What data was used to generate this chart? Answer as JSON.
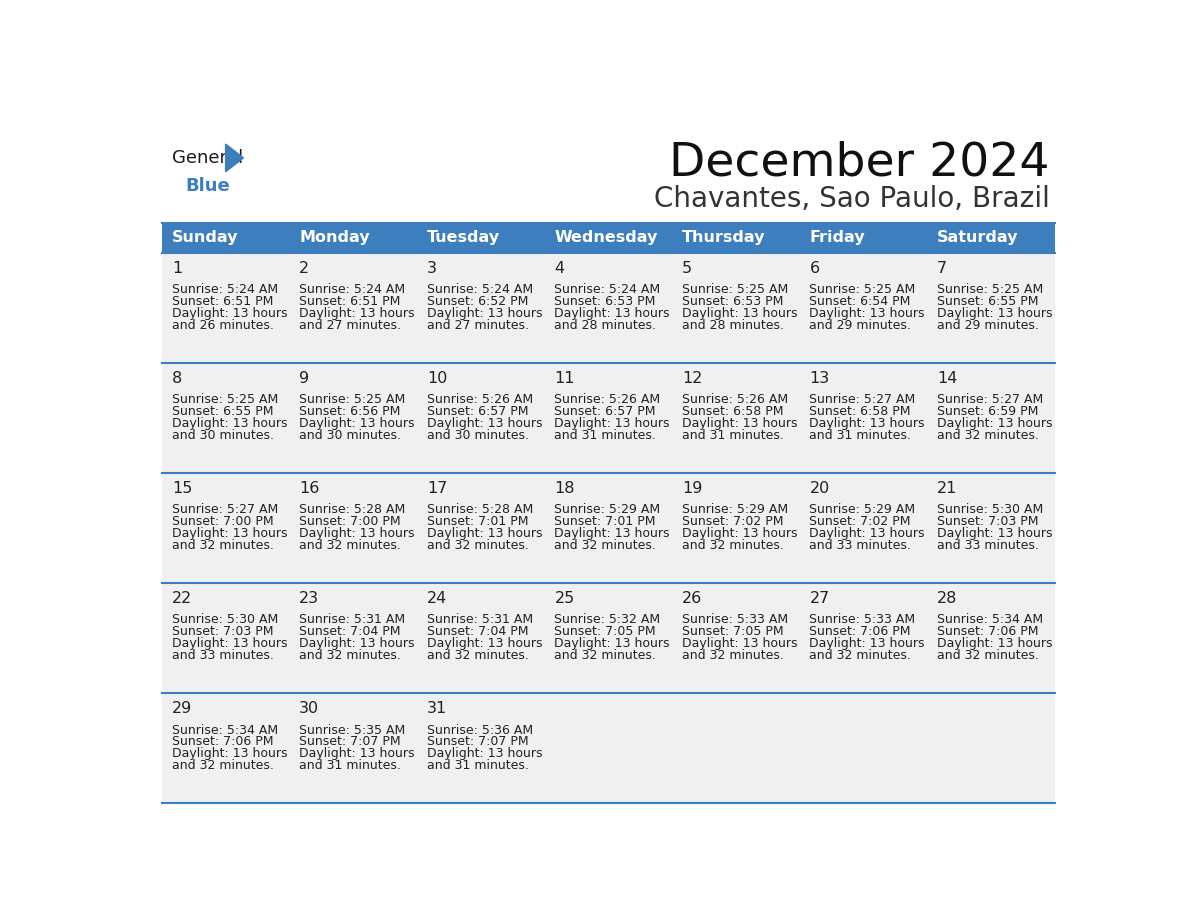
{
  "title": "December 2024",
  "subtitle": "Chavantes, Sao Paulo, Brazil",
  "header_bg_color": "#3d7ebf",
  "header_text_color": "#ffffff",
  "cell_bg_color": "#f0f0f0",
  "row_separator_color": "#3d7ebf",
  "text_color": "#222222",
  "days_of_week": [
    "Sunday",
    "Monday",
    "Tuesday",
    "Wednesday",
    "Thursday",
    "Friday",
    "Saturday"
  ],
  "calendar_data": [
    [
      {
        "day": "1",
        "sunrise": "5:24 AM",
        "sunset": "6:51 PM",
        "daylight_h": "13 hours",
        "daylight_m": "and 26 minutes."
      },
      {
        "day": "2",
        "sunrise": "5:24 AM",
        "sunset": "6:51 PM",
        "daylight_h": "13 hours",
        "daylight_m": "and 27 minutes."
      },
      {
        "day": "3",
        "sunrise": "5:24 AM",
        "sunset": "6:52 PM",
        "daylight_h": "13 hours",
        "daylight_m": "and 27 minutes."
      },
      {
        "day": "4",
        "sunrise": "5:24 AM",
        "sunset": "6:53 PM",
        "daylight_h": "13 hours",
        "daylight_m": "and 28 minutes."
      },
      {
        "day": "5",
        "sunrise": "5:25 AM",
        "sunset": "6:53 PM",
        "daylight_h": "13 hours",
        "daylight_m": "and 28 minutes."
      },
      {
        "day": "6",
        "sunrise": "5:25 AM",
        "sunset": "6:54 PM",
        "daylight_h": "13 hours",
        "daylight_m": "and 29 minutes."
      },
      {
        "day": "7",
        "sunrise": "5:25 AM",
        "sunset": "6:55 PM",
        "daylight_h": "13 hours",
        "daylight_m": "and 29 minutes."
      }
    ],
    [
      {
        "day": "8",
        "sunrise": "5:25 AM",
        "sunset": "6:55 PM",
        "daylight_h": "13 hours",
        "daylight_m": "and 30 minutes."
      },
      {
        "day": "9",
        "sunrise": "5:25 AM",
        "sunset": "6:56 PM",
        "daylight_h": "13 hours",
        "daylight_m": "and 30 minutes."
      },
      {
        "day": "10",
        "sunrise": "5:26 AM",
        "sunset": "6:57 PM",
        "daylight_h": "13 hours",
        "daylight_m": "and 30 minutes."
      },
      {
        "day": "11",
        "sunrise": "5:26 AM",
        "sunset": "6:57 PM",
        "daylight_h": "13 hours",
        "daylight_m": "and 31 minutes."
      },
      {
        "day": "12",
        "sunrise": "5:26 AM",
        "sunset": "6:58 PM",
        "daylight_h": "13 hours",
        "daylight_m": "and 31 minutes."
      },
      {
        "day": "13",
        "sunrise": "5:27 AM",
        "sunset": "6:58 PM",
        "daylight_h": "13 hours",
        "daylight_m": "and 31 minutes."
      },
      {
        "day": "14",
        "sunrise": "5:27 AM",
        "sunset": "6:59 PM",
        "daylight_h": "13 hours",
        "daylight_m": "and 32 minutes."
      }
    ],
    [
      {
        "day": "15",
        "sunrise": "5:27 AM",
        "sunset": "7:00 PM",
        "daylight_h": "13 hours",
        "daylight_m": "and 32 minutes."
      },
      {
        "day": "16",
        "sunrise": "5:28 AM",
        "sunset": "7:00 PM",
        "daylight_h": "13 hours",
        "daylight_m": "and 32 minutes."
      },
      {
        "day": "17",
        "sunrise": "5:28 AM",
        "sunset": "7:01 PM",
        "daylight_h": "13 hours",
        "daylight_m": "and 32 minutes."
      },
      {
        "day": "18",
        "sunrise": "5:29 AM",
        "sunset": "7:01 PM",
        "daylight_h": "13 hours",
        "daylight_m": "and 32 minutes."
      },
      {
        "day": "19",
        "sunrise": "5:29 AM",
        "sunset": "7:02 PM",
        "daylight_h": "13 hours",
        "daylight_m": "and 32 minutes."
      },
      {
        "day": "20",
        "sunrise": "5:29 AM",
        "sunset": "7:02 PM",
        "daylight_h": "13 hours",
        "daylight_m": "and 33 minutes."
      },
      {
        "day": "21",
        "sunrise": "5:30 AM",
        "sunset": "7:03 PM",
        "daylight_h": "13 hours",
        "daylight_m": "and 33 minutes."
      }
    ],
    [
      {
        "day": "22",
        "sunrise": "5:30 AM",
        "sunset": "7:03 PM",
        "daylight_h": "13 hours",
        "daylight_m": "and 33 minutes."
      },
      {
        "day": "23",
        "sunrise": "5:31 AM",
        "sunset": "7:04 PM",
        "daylight_h": "13 hours",
        "daylight_m": "and 32 minutes."
      },
      {
        "day": "24",
        "sunrise": "5:31 AM",
        "sunset": "7:04 PM",
        "daylight_h": "13 hours",
        "daylight_m": "and 32 minutes."
      },
      {
        "day": "25",
        "sunrise": "5:32 AM",
        "sunset": "7:05 PM",
        "daylight_h": "13 hours",
        "daylight_m": "and 32 minutes."
      },
      {
        "day": "26",
        "sunrise": "5:33 AM",
        "sunset": "7:05 PM",
        "daylight_h": "13 hours",
        "daylight_m": "and 32 minutes."
      },
      {
        "day": "27",
        "sunrise": "5:33 AM",
        "sunset": "7:06 PM",
        "daylight_h": "13 hours",
        "daylight_m": "and 32 minutes."
      },
      {
        "day": "28",
        "sunrise": "5:34 AM",
        "sunset": "7:06 PM",
        "daylight_h": "13 hours",
        "daylight_m": "and 32 minutes."
      }
    ],
    [
      {
        "day": "29",
        "sunrise": "5:34 AM",
        "sunset": "7:06 PM",
        "daylight_h": "13 hours",
        "daylight_m": "and 32 minutes."
      },
      {
        "day": "30",
        "sunrise": "5:35 AM",
        "sunset": "7:07 PM",
        "daylight_h": "13 hours",
        "daylight_m": "and 31 minutes."
      },
      {
        "day": "31",
        "sunrise": "5:36 AM",
        "sunset": "7:07 PM",
        "daylight_h": "13 hours",
        "daylight_m": "and 31 minutes."
      },
      null,
      null,
      null,
      null
    ]
  ]
}
